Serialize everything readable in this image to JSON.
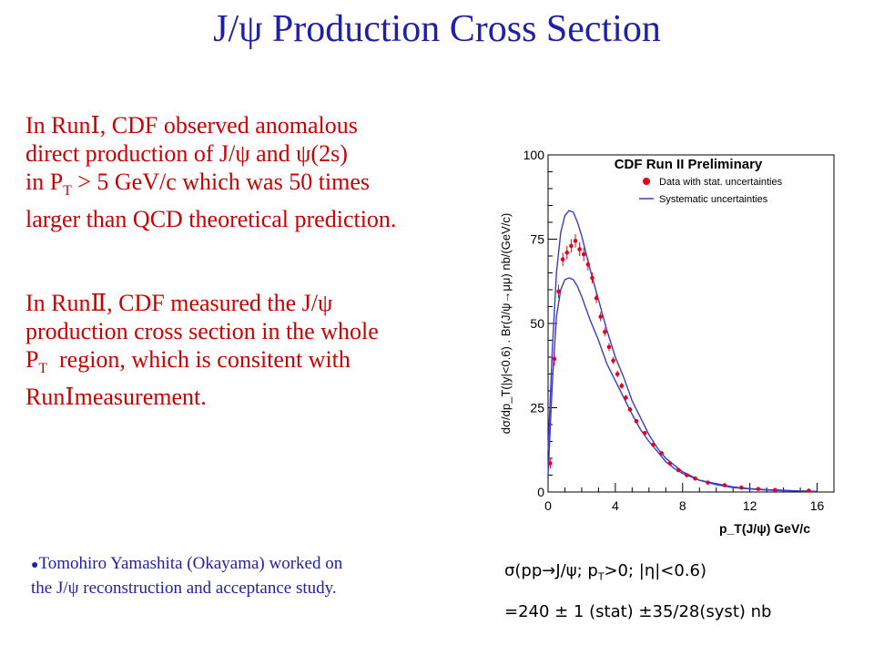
{
  "slide": {
    "title": "J/ψ Production Cross Section",
    "para1": {
      "line1": "In RunⅠ, CDF observed anomalous",
      "line2": "direct production of J/ψ and ψ(2s)",
      "line3_pre": "in P",
      "line3_sub": "T",
      "line3_post": " > 5 GeV/c which was 50 times",
      "line4": "larger than QCD theoretical prediction."
    },
    "para2": {
      "line1": "In RunⅡ, CDF measured the J/ψ",
      "line2": "production cross section in the whole",
      "line3_pre": "P",
      "line3_sub": "T",
      "line3_post": "  region, which is consitent with",
      "line4": "RunⅠmeasurement."
    },
    "note": {
      "bullet": "●",
      "line1": "Tomohiro Yamashita (Okayama) worked on",
      "line2": "the J/ψ reconstruction and acceptance study."
    },
    "result": {
      "line1_a": "σ(pp→J/ψ; p",
      "line1_sub": "T",
      "line1_b": ">0; |η|<0.6)",
      "line2": "=240 ± 1 (stat) ±35/28(syst) nb"
    }
  },
  "colors": {
    "title": "#1f1fa8",
    "text": "#cc0000",
    "data_points": "#e8001a",
    "band": "#3a3acf"
  },
  "chart_data": {
    "type": "scatter",
    "title": "CDF Run II Preliminary",
    "xlabel": "p_T(J/ψ) GeV/c",
    "ylabel": "dσ/dp_T(|y|<0.6) . Br(J/ψ→μμ) nb/(GeV/c)",
    "xlim": [
      0,
      17
    ],
    "ylim": [
      0,
      100
    ],
    "xticks": [
      0,
      4,
      8,
      12,
      16
    ],
    "yticks": [
      0,
      25,
      50,
      75,
      100
    ],
    "legend_position": "top-right",
    "legend": [
      {
        "label": "Data with stat. uncertainties",
        "marker": "dot"
      },
      {
        "label": "Systematic uncertainties",
        "marker": "line"
      }
    ],
    "series": [
      {
        "name": "Data with stat. uncertainties",
        "x": [
          0.125,
          0.375,
          0.625,
          0.875,
          1.125,
          1.375,
          1.625,
          1.875,
          2.125,
          2.375,
          2.625,
          2.875,
          3.125,
          3.375,
          3.625,
          3.875,
          4.125,
          4.375,
          4.625,
          4.875,
          5.25,
          5.75,
          6.25,
          6.75,
          7.25,
          7.75,
          8.25,
          8.75,
          9.5,
          10.5,
          11.5,
          12.5,
          13.5,
          15.5
        ],
        "y": [
          8.5,
          39.5,
          59.5,
          69,
          71,
          73,
          74.5,
          72,
          70.5,
          67.5,
          63.5,
          57.5,
          52,
          47.5,
          43,
          39,
          35,
          31.5,
          28,
          24.5,
          21,
          17.5,
          14,
          11.5,
          8.5,
          6.5,
          5,
          4,
          2.8,
          2,
          1.3,
          0.9,
          0.6,
          0.4
        ]
      },
      {
        "name": "Systematic upper",
        "x": [
          0,
          0.25,
          0.5,
          0.75,
          1,
          1.25,
          1.5,
          1.75,
          2,
          2.5,
          3,
          3.5,
          4,
          4.5,
          5,
          5.5,
          6,
          6.5,
          7,
          7.5,
          8,
          9,
          10,
          11,
          12,
          13,
          14,
          15,
          16
        ],
        "y": [
          12,
          42,
          65,
          77,
          82,
          83.5,
          83,
          80,
          76,
          66,
          57,
          48,
          40,
          34,
          27,
          22,
          17,
          13,
          10,
          8,
          6,
          3.5,
          2.5,
          1.5,
          1,
          0.7,
          0.5,
          0.3,
          0.2
        ]
      },
      {
        "name": "Systematic lower",
        "x": [
          0,
          0.25,
          0.5,
          0.75,
          1,
          1.25,
          1.5,
          1.75,
          2,
          2.5,
          3,
          3.5,
          4,
          4.5,
          5,
          5.5,
          6,
          6.5,
          7,
          7.5,
          8,
          9,
          10,
          11,
          12,
          13,
          14,
          15,
          16
        ],
        "y": [
          5,
          32,
          52,
          60,
          63,
          63.5,
          63,
          61,
          58,
          51,
          45,
          38,
          33,
          28,
          23,
          18.5,
          15,
          12,
          9,
          7,
          5.5,
          3.5,
          2.2,
          1.3,
          0.9,
          0.6,
          0.4,
          0.3,
          0.2
        ]
      }
    ],
    "yerr": [
      1.5,
      2,
      2,
      2,
      2,
      2,
      2,
      2,
      2,
      1.8,
      1.6,
      1.5,
      1.4,
      1.3,
      1.2,
      1.1,
      1,
      0.9,
      0.8,
      0.7,
      0.6,
      0.5,
      0.4,
      0.3,
      0.3,
      0.2,
      0.2,
      0.2,
      0.2,
      0.1,
      0.1,
      0.1,
      0.1,
      0.1
    ]
  }
}
